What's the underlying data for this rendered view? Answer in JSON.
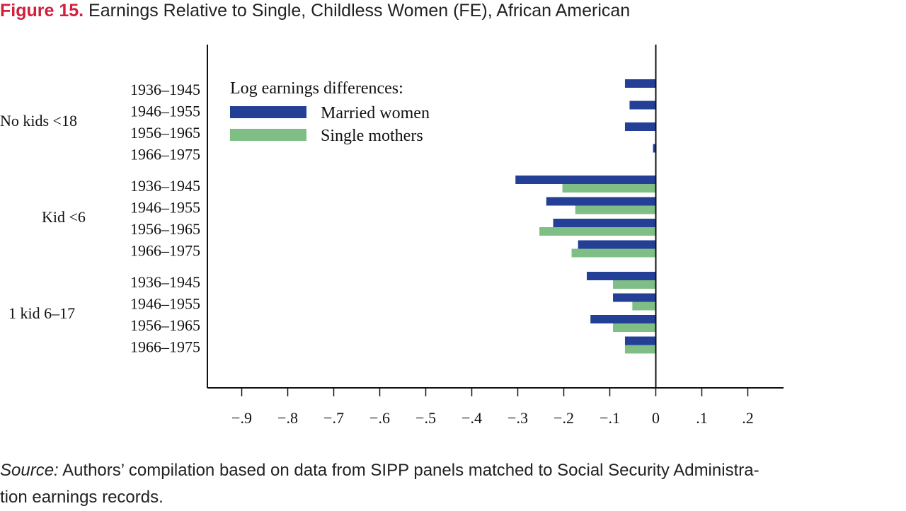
{
  "figure": {
    "label": "Figure 15.",
    "title": "Earnings Relative to Single, Childless Women (FE), African American"
  },
  "source": {
    "label": "Source:",
    "text": "Authors’ compilation based on data from SIPP panels matched to Social Security Administration earnings records.",
    "text_line1": "Authors’ compilation based on data from SIPP panels matched to Social Security Administra-",
    "text_line2": "tion earnings records."
  },
  "colors": {
    "married": "#233f96",
    "single": "#7fbf86",
    "axis": "#111111"
  },
  "chart_data": {
    "type": "bar",
    "orientation": "horizontal",
    "legend": {
      "title": "Log earnings differences:",
      "entries": [
        "Married women",
        "Single mothers"
      ],
      "placement": "upper-left inside"
    },
    "xlim": [
      -0.98,
      0.28
    ],
    "xticks": [
      -0.9,
      -0.8,
      -0.7,
      -0.6,
      -0.5,
      -0.4,
      -0.3,
      -0.2,
      -0.1,
      0,
      0.1,
      0.2
    ],
    "xtick_labels": [
      "−.9",
      "−.8",
      "−.7",
      "−.6",
      "−.5",
      "−.4",
      "−.3",
      "−.2",
      "−.1",
      "0",
      ".1",
      ".2"
    ],
    "grid": false,
    "groups": [
      {
        "label": "No kids <18",
        "rows": [
          {
            "cohort": "1936–1945",
            "married": -0.067,
            "single": null
          },
          {
            "cohort": "1946–1955",
            "married": -0.057,
            "single": null
          },
          {
            "cohort": "1956–1965",
            "married": -0.067,
            "single": null
          },
          {
            "cohort": "1966–1975",
            "married": -0.006,
            "single": null
          }
        ]
      },
      {
        "label": "Kid <6",
        "rows": [
          {
            "cohort": "1936–1945",
            "married": -0.305,
            "single": -0.203
          },
          {
            "cohort": "1946–1955",
            "married": -0.238,
            "single": -0.175
          },
          {
            "cohort": "1956–1965",
            "married": -0.223,
            "single": -0.253
          },
          {
            "cohort": "1966–1975",
            "married": -0.169,
            "single": -0.183
          }
        ]
      },
      {
        "label": "1 kid 6–17",
        "rows": [
          {
            "cohort": "1936–1945",
            "married": -0.15,
            "single": -0.093
          },
          {
            "cohort": "1946–1955",
            "married": -0.093,
            "single": -0.051
          },
          {
            "cohort": "1956–1965",
            "married": -0.142,
            "single": -0.093
          },
          {
            "cohort": "1966–1975",
            "married": -0.067,
            "single": -0.067
          }
        ]
      }
    ]
  }
}
